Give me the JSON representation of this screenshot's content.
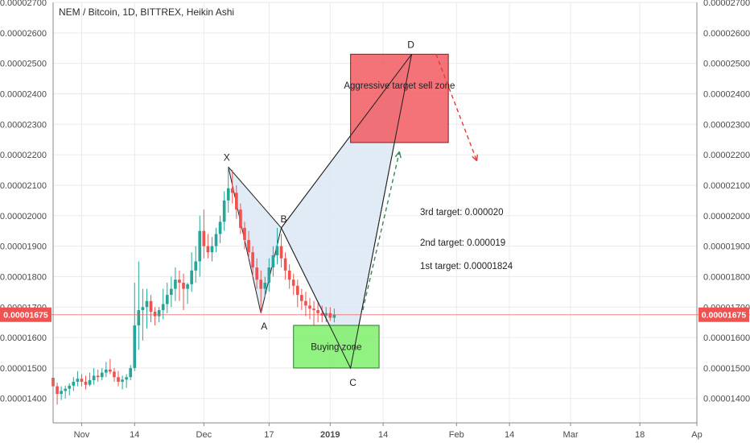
{
  "chart_data": {
    "type": "candlestick",
    "title": "NEM / Bitcoin, 1D, BITTREX, Heikin Ashi",
    "ylim": [
      1.32e-05,
      2.7e-05
    ],
    "y_ticks": [
      "0.00001400",
      "0.00001500",
      "0.00001600",
      "0.00001700",
      "0.00001800",
      "0.00001900",
      "0.00002000",
      "0.00002100",
      "0.00002200",
      "0.00002300",
      "0.00002400",
      "0.00002500",
      "0.00002600",
      "0.00002700"
    ],
    "x_range": [
      "2018-10-25",
      "2019-04-01"
    ],
    "x_ticks": [
      {
        "date": "2018-11-01",
        "label": "Nov"
      },
      {
        "date": "2018-11-14",
        "label": "14"
      },
      {
        "date": "2018-12-01",
        "label": "Dec"
      },
      {
        "date": "2018-12-17",
        "label": "17"
      },
      {
        "date": "2019-01-01",
        "label": "2019",
        "bold": true
      },
      {
        "date": "2019-01-14",
        "label": "14"
      },
      {
        "date": "2019-02-01",
        "label": "Feb"
      },
      {
        "date": "2019-02-14",
        "label": "14"
      },
      {
        "date": "2019-03-01",
        "label": "Mar"
      },
      {
        "date": "2019-03-18",
        "label": "18"
      },
      {
        "date": "2019-04-01",
        "label": "Ap"
      }
    ],
    "last_price": {
      "value": 1.675e-05,
      "label": "0.00001675"
    },
    "colors": {
      "up": "#26a69a",
      "down": "#ef5350",
      "grid": "#eaeaea",
      "price_line": "#ef5350"
    },
    "candles": [
      {
        "date": "2018-10-25",
        "o": 1.468,
        "h": 1.48,
        "l": 1.405,
        "c": 1.44
      },
      {
        "date": "2018-10-26",
        "o": 1.44,
        "h": 1.452,
        "l": 1.38,
        "c": 1.415
      },
      {
        "date": "2018-10-27",
        "o": 1.415,
        "h": 1.44,
        "l": 1.395,
        "c": 1.425
      },
      {
        "date": "2018-10-28",
        "o": 1.425,
        "h": 1.442,
        "l": 1.4,
        "c": 1.432
      },
      {
        "date": "2018-10-29",
        "o": 1.432,
        "h": 1.45,
        "l": 1.41,
        "c": 1.442
      },
      {
        "date": "2018-10-30",
        "o": 1.442,
        "h": 1.47,
        "l": 1.425,
        "c": 1.455
      },
      {
        "date": "2018-10-31",
        "o": 1.455,
        "h": 1.49,
        "l": 1.44,
        "c": 1.465
      },
      {
        "date": "2018-11-01",
        "o": 1.465,
        "h": 1.48,
        "l": 1.44,
        "c": 1.455
      },
      {
        "date": "2018-11-02",
        "o": 1.455,
        "h": 1.475,
        "l": 1.43,
        "c": 1.445
      },
      {
        "date": "2018-11-03",
        "o": 1.445,
        "h": 1.485,
        "l": 1.44,
        "c": 1.46
      },
      {
        "date": "2018-11-04",
        "o": 1.46,
        "h": 1.5,
        "l": 1.445,
        "c": 1.475
      },
      {
        "date": "2018-11-05",
        "o": 1.475,
        "h": 1.495,
        "l": 1.455,
        "c": 1.47
      },
      {
        "date": "2018-11-06",
        "o": 1.47,
        "h": 1.5,
        "l": 1.46,
        "c": 1.485
      },
      {
        "date": "2018-11-07",
        "o": 1.485,
        "h": 1.52,
        "l": 1.47,
        "c": 1.495
      },
      {
        "date": "2018-11-08",
        "o": 1.495,
        "h": 1.53,
        "l": 1.48,
        "c": 1.488
      },
      {
        "date": "2018-11-09",
        "o": 1.488,
        "h": 1.5,
        "l": 1.455,
        "c": 1.47
      },
      {
        "date": "2018-11-10",
        "o": 1.47,
        "h": 1.49,
        "l": 1.44,
        "c": 1.455
      },
      {
        "date": "2018-11-11",
        "o": 1.455,
        "h": 1.475,
        "l": 1.43,
        "c": 1.462
      },
      {
        "date": "2018-11-12",
        "o": 1.462,
        "h": 1.48,
        "l": 1.435,
        "c": 1.47
      },
      {
        "date": "2018-11-13",
        "o": 1.47,
        "h": 1.51,
        "l": 1.46,
        "c": 1.5
      },
      {
        "date": "2018-11-14",
        "o": 1.5,
        "h": 1.78,
        "l": 1.49,
        "c": 1.64
      },
      {
        "date": "2018-11-15",
        "o": 1.64,
        "h": 1.85,
        "l": 1.56,
        "c": 1.69
      },
      {
        "date": "2018-11-16",
        "o": 1.69,
        "h": 1.76,
        "l": 1.59,
        "c": 1.7
      },
      {
        "date": "2018-11-17",
        "o": 1.7,
        "h": 1.76,
        "l": 1.63,
        "c": 1.72
      },
      {
        "date": "2018-11-18",
        "o": 1.72,
        "h": 1.74,
        "l": 1.65,
        "c": 1.685
      },
      {
        "date": "2018-11-19",
        "o": 1.685,
        "h": 1.7,
        "l": 1.64,
        "c": 1.67
      },
      {
        "date": "2018-11-20",
        "o": 1.67,
        "h": 1.7,
        "l": 1.65,
        "c": 1.69
      },
      {
        "date": "2018-11-21",
        "o": 1.69,
        "h": 1.76,
        "l": 1.66,
        "c": 1.71
      },
      {
        "date": "2018-11-22",
        "o": 1.71,
        "h": 1.78,
        "l": 1.68,
        "c": 1.74
      },
      {
        "date": "2018-11-23",
        "o": 1.74,
        "h": 1.8,
        "l": 1.7,
        "c": 1.76
      },
      {
        "date": "2018-11-24",
        "o": 1.76,
        "h": 1.83,
        "l": 1.72,
        "c": 1.79
      },
      {
        "date": "2018-11-25",
        "o": 1.79,
        "h": 1.82,
        "l": 1.72,
        "c": 1.78
      },
      {
        "date": "2018-11-26",
        "o": 1.78,
        "h": 1.81,
        "l": 1.69,
        "c": 1.76
      },
      {
        "date": "2018-11-27",
        "o": 1.76,
        "h": 1.78,
        "l": 1.71,
        "c": 1.775
      },
      {
        "date": "2018-11-28",
        "o": 1.775,
        "h": 1.88,
        "l": 1.75,
        "c": 1.82
      },
      {
        "date": "2018-11-29",
        "o": 1.82,
        "h": 1.9,
        "l": 1.78,
        "c": 1.85
      },
      {
        "date": "2018-11-30",
        "o": 1.85,
        "h": 2.0,
        "l": 1.8,
        "c": 1.95
      },
      {
        "date": "2018-12-01",
        "o": 1.95,
        "h": 2.02,
        "l": 1.86,
        "c": 1.9
      },
      {
        "date": "2018-12-02",
        "o": 1.9,
        "h": 1.94,
        "l": 1.86,
        "c": 1.88
      },
      {
        "date": "2018-12-03",
        "o": 1.88,
        "h": 1.93,
        "l": 1.85,
        "c": 1.9
      },
      {
        "date": "2018-12-04",
        "o": 1.9,
        "h": 1.96,
        "l": 1.88,
        "c": 1.94
      },
      {
        "date": "2018-12-05",
        "o": 1.94,
        "h": 2.0,
        "l": 1.91,
        "c": 1.98
      },
      {
        "date": "2018-12-06",
        "o": 1.98,
        "h": 2.08,
        "l": 1.95,
        "c": 2.05
      },
      {
        "date": "2018-12-07",
        "o": 2.05,
        "h": 2.16,
        "l": 2.01,
        "c": 2.09
      },
      {
        "date": "2018-12-08",
        "o": 2.09,
        "h": 2.15,
        "l": 2.04,
        "c": 2.075
      },
      {
        "date": "2018-12-09",
        "o": 2.075,
        "h": 2.1,
        "l": 1.99,
        "c": 2.02
      },
      {
        "date": "2018-12-10",
        "o": 2.02,
        "h": 2.04,
        "l": 1.94,
        "c": 1.96
      },
      {
        "date": "2018-12-11",
        "o": 1.96,
        "h": 1.98,
        "l": 1.89,
        "c": 1.92
      },
      {
        "date": "2018-12-12",
        "o": 1.92,
        "h": 1.95,
        "l": 1.86,
        "c": 1.88
      },
      {
        "date": "2018-12-13",
        "o": 1.88,
        "h": 1.9,
        "l": 1.8,
        "c": 1.83
      },
      {
        "date": "2018-12-14",
        "o": 1.83,
        "h": 1.86,
        "l": 1.76,
        "c": 1.79
      },
      {
        "date": "2018-12-15",
        "o": 1.79,
        "h": 1.82,
        "l": 1.68,
        "c": 1.76
      },
      {
        "date": "2018-12-16",
        "o": 1.76,
        "h": 1.8,
        "l": 1.73,
        "c": 1.78
      },
      {
        "date": "2018-12-17",
        "o": 1.78,
        "h": 1.86,
        "l": 1.75,
        "c": 1.83
      },
      {
        "date": "2018-12-18",
        "o": 1.83,
        "h": 1.9,
        "l": 1.8,
        "c": 1.87
      },
      {
        "date": "2018-12-19",
        "o": 1.87,
        "h": 1.96,
        "l": 1.84,
        "c": 1.9
      },
      {
        "date": "2018-12-20",
        "o": 1.9,
        "h": 1.94,
        "l": 1.83,
        "c": 1.86
      },
      {
        "date": "2018-12-21",
        "o": 1.86,
        "h": 1.88,
        "l": 1.79,
        "c": 1.82
      },
      {
        "date": "2018-12-22",
        "o": 1.82,
        "h": 1.84,
        "l": 1.76,
        "c": 1.79
      },
      {
        "date": "2018-12-23",
        "o": 1.79,
        "h": 1.81,
        "l": 1.74,
        "c": 1.77
      },
      {
        "date": "2018-12-24",
        "o": 1.77,
        "h": 1.79,
        "l": 1.7,
        "c": 1.74
      },
      {
        "date": "2018-12-25",
        "o": 1.74,
        "h": 1.76,
        "l": 1.69,
        "c": 1.72
      },
      {
        "date": "2018-12-26",
        "o": 1.72,
        "h": 1.75,
        "l": 1.67,
        "c": 1.705
      },
      {
        "date": "2018-12-27",
        "o": 1.705,
        "h": 1.73,
        "l": 1.66,
        "c": 1.695
      },
      {
        "date": "2018-12-28",
        "o": 1.695,
        "h": 1.72,
        "l": 1.64,
        "c": 1.69
      },
      {
        "date": "2018-12-29",
        "o": 1.69,
        "h": 1.715,
        "l": 1.65,
        "c": 1.68
      },
      {
        "date": "2018-12-30",
        "o": 1.68,
        "h": 1.705,
        "l": 1.65,
        "c": 1.672
      },
      {
        "date": "2018-12-31",
        "o": 1.672,
        "h": 1.7,
        "l": 1.65,
        "c": 1.68
      },
      {
        "date": "2019-01-01",
        "o": 1.68,
        "h": 1.7,
        "l": 1.655,
        "c": 1.665
      },
      {
        "date": "2019-01-02",
        "o": 1.665,
        "h": 1.695,
        "l": 1.65,
        "c": 1.675
      }
    ],
    "pattern_points": [
      {
        "label": "X",
        "date": "2018-12-07",
        "value": 2.16e-05
      },
      {
        "label": "A",
        "date": "2018-12-15",
        "value": 1.68e-05
      },
      {
        "label": "B",
        "date": "2018-12-20",
        "value": 1.96e-05
      },
      {
        "label": "C",
        "date": "2019-01-06",
        "value": 1.5e-05
      },
      {
        "label": "D",
        "date": "2019-01-21",
        "value": 2.53e-05
      }
    ],
    "zones": [
      {
        "name": "sell",
        "label": "Aggressive target sell zone",
        "date_from": "2019-01-06",
        "date_to": "2019-01-30",
        "high": 2.53e-05,
        "low": 2.24e-05,
        "fill": "#f25a62",
        "edge": "#7a1f24"
      },
      {
        "name": "buy",
        "label": "Buying zone",
        "date_from": "2018-12-23",
        "date_to": "2019-01-13",
        "high": 1.64e-05,
        "low": 1.5e-05,
        "fill": "#7ff06b",
        "edge": "#2c7a2a"
      }
    ],
    "arrows": [
      {
        "name": "projection",
        "color": "#2e8b57",
        "from": {
          "date": "2019-01-09",
          "value": 1.69e-05
        },
        "to": {
          "date": "2019-01-18",
          "value": 2.21e-05
        }
      },
      {
        "name": "sell-off",
        "color": "#e53935",
        "from": {
          "date": "2019-01-27",
          "value": 2.53e-05
        },
        "to": {
          "date": "2019-02-06",
          "value": 2.18e-05
        }
      }
    ],
    "targets": [
      "3rd target: 0.000020",
      "2nd target: 0.000019",
      "1st target: 0.00001824"
    ],
    "harmonic_fill": "#dbe7f5"
  }
}
